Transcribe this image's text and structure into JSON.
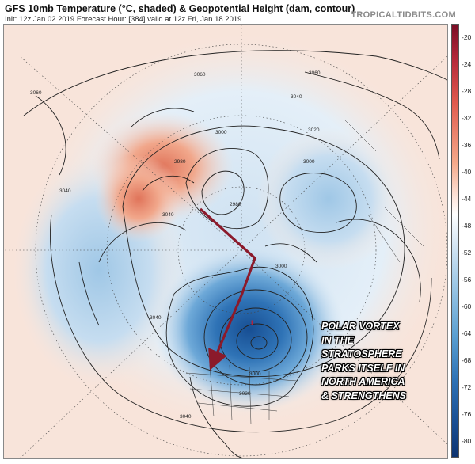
{
  "header": {
    "title": "GFS 10mb Temperature (°C, shaded) & Geopotential Height (dam, contour)",
    "subtitle": "Init: 12z Jan 02 2019   Forecast Hour: [384]   valid at 12z Fri, Jan 18 2019",
    "brand": "TROPICALTIDBITS.COM"
  },
  "colorbar": {
    "ticks": [
      "-20",
      "-24",
      "-28",
      "-32",
      "-36",
      "-40",
      "-44",
      "-48",
      "-52",
      "-56",
      "-60",
      "-64",
      "-68",
      "-72",
      "-76",
      "-80"
    ]
  },
  "contour_labels": [
    "3060",
    "3060",
    "3040",
    "3000",
    "3020",
    "2980",
    "3000",
    "2980",
    "3040",
    "3040",
    "3040",
    "3000",
    "3020",
    "3040",
    "3060",
    "3000"
  ],
  "annotation": {
    "lines": [
      "POLAR VORTEX",
      "IN THE",
      "STRATOSPHERE",
      "PARKS ITSELF IN",
      "NORTH AMERICA",
      "& STRENGTHENS"
    ]
  },
  "colors": {
    "arrow": "#8b1a2b",
    "warm": "#e27b5f",
    "cold": "#1f5fa5"
  }
}
